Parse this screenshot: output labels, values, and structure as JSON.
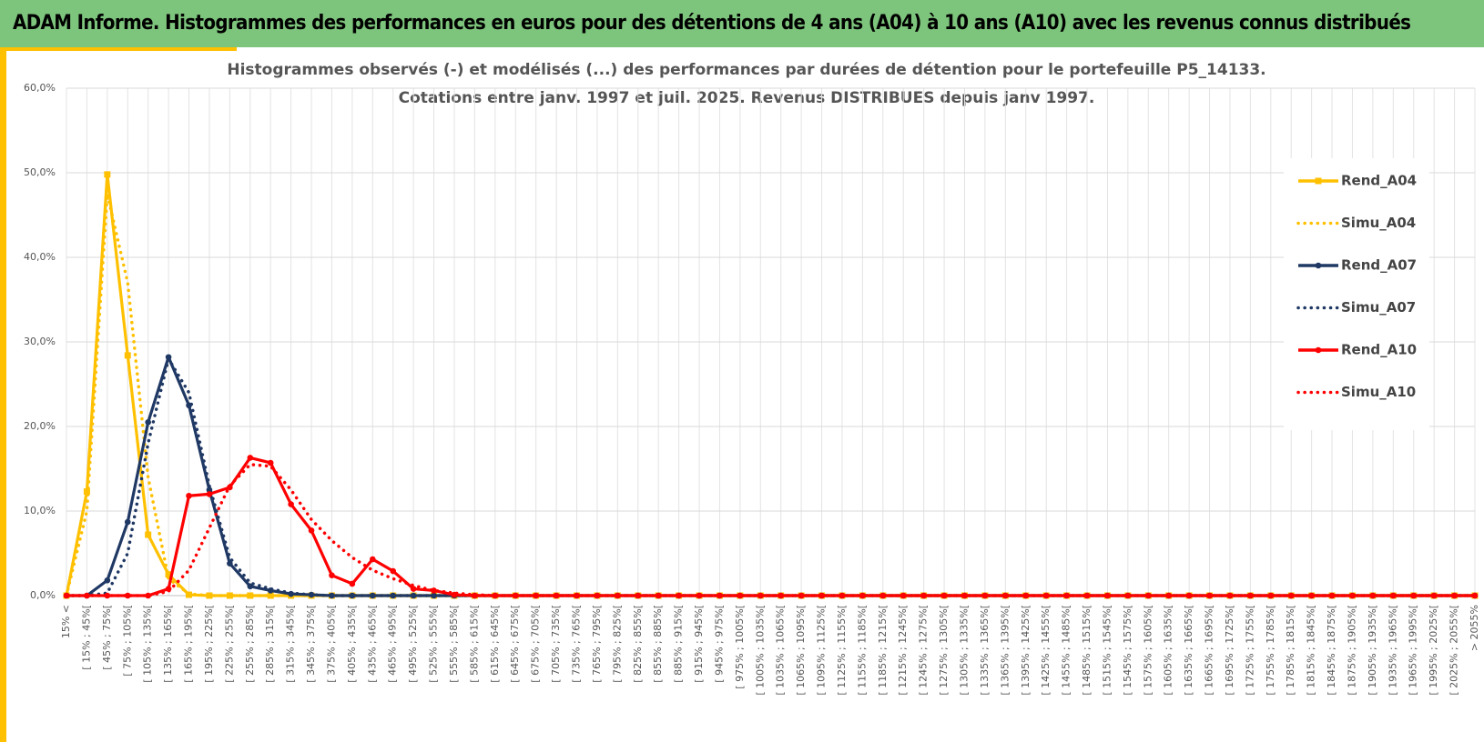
{
  "header": "ADAM Informe. Histogrammes des performances en euros pour des détentions de 4 ans (A04) à 10 ans (A10) avec les revenus connus distribués",
  "chart_data": {
    "type": "line",
    "title": "Histogrammes observés (-) et modélisés (...) des performances par durées de détention pour le portefeuille P5_14133.",
    "subtitle": "Cotations entre janv. 1997 et juil. 2025. Revenus DISTRIBUES depuis janv 1997.",
    "categories": [
      "15% <",
      "[ 15% ; 45%[",
      "[ 45% ; 75%[",
      "[ 75% ; 105%[",
      "[ 105% ; 135%[",
      "[ 135% ; 165%[",
      "[ 165% ; 195%[",
      "[ 195% ; 225%[",
      "[ 225% ; 255%[",
      "[ 255% ; 285%[",
      "[ 285% ; 315%[",
      "[ 315% ; 345%[",
      "[ 345% ; 375%[",
      "[ 375% ; 405%[",
      "[ 405% ; 435%[",
      "[ 435% ; 465%[",
      "[ 465% ; 495%[",
      "[ 495% ; 525%[",
      "[ 525% ; 555%[",
      "[ 555% ; 585%[",
      "[ 585% ; 615%[",
      "[ 615% ; 645%[",
      "[ 645% ; 675%[",
      "[ 675% ; 705%[",
      "[ 705% ; 735%[",
      "[ 735% ; 765%[",
      "[ 765% ; 795%[",
      "[ 795% ; 825%[",
      "[ 825% ; 855%[",
      "[ 855% ; 885%[",
      "[ 885% ; 915%[",
      "[ 915% ; 945%[",
      "[ 945% ; 975%[",
      "[ 975% ; 1005%[",
      "[ 1005% ; 1035%[",
      "[ 1035% ; 1065%[",
      "[ 1065% ; 1095%[",
      "[ 1095% ; 1125%[",
      "[ 1125% ; 1155%[",
      "[ 1155% ; 1185%[",
      "[ 1185% ; 1215%[",
      "[ 1215% ; 1245%[",
      "[ 1245% ; 1275%[",
      "[ 1275% ; 1305%[",
      "[ 1305% ; 1335%[",
      "[ 1335% ; 1365%[",
      "[ 1365% ; 1395%[",
      "[ 1395% ; 1425%[",
      "[ 1425% ; 1455%[",
      "[ 1455% ; 1485%[",
      "[ 1485% ; 1515%[",
      "[ 1515% ; 1545%[",
      "[ 1545% ; 1575%[",
      "[ 1575% ; 1605%[",
      "[ 1605% ; 1635%[",
      "[ 1635% ; 1665%[",
      "[ 1665% ; 1695%[",
      "[ 1695% ; 1725%[",
      "[ 1725% ; 1755%[",
      "[ 1755% ; 1785%[",
      "[ 1785% ; 1815%[",
      "[ 1815% ; 1845%[",
      "[ 1845% ; 1875%[",
      "[ 1875% ; 1905%[",
      "[ 1905% ; 1935%[",
      "[ 1935% ; 1965%[",
      "[ 1965% ; 1995%[",
      "[ 1995% ; 2025%[",
      "[ 2025% ; 2055%[",
      "> 2055%"
    ],
    "series": [
      {
        "name": "Rend_A04",
        "color": "#ffc000",
        "style": "solid",
        "marker": "square",
        "values": [
          0,
          12.3,
          49.8,
          28.4,
          7.2,
          2.5,
          0.1,
          0,
          0,
          0,
          0,
          0,
          0,
          0,
          0,
          0,
          0,
          0,
          0,
          0,
          0,
          0,
          0,
          0,
          0,
          0,
          0,
          0,
          0,
          0,
          0,
          0,
          0,
          0,
          0,
          0,
          0,
          0,
          0,
          0,
          0,
          0,
          0,
          0,
          0,
          0,
          0,
          0,
          0,
          0,
          0,
          0,
          0,
          0,
          0,
          0,
          0,
          0,
          0,
          0,
          0,
          0,
          0,
          0,
          0,
          0,
          0,
          0,
          0,
          0
        ]
      },
      {
        "name": "Simu_A04",
        "color": "#ffc000",
        "style": "dotted",
        "marker": null,
        "values": [
          0,
          10,
          47.5,
          37,
          14,
          2,
          0.2,
          0,
          0,
          0,
          0,
          0,
          0,
          0,
          0,
          0,
          0,
          0,
          0,
          0,
          0,
          0,
          0,
          0,
          0,
          0,
          0,
          0,
          0,
          0,
          0,
          0,
          0,
          0,
          0,
          0,
          0,
          0,
          0,
          0,
          0,
          0,
          0,
          0,
          0,
          0,
          0,
          0,
          0,
          0,
          0,
          0,
          0,
          0,
          0,
          0,
          0,
          0,
          0,
          0,
          0,
          0,
          0,
          0,
          0,
          0,
          0,
          0,
          0,
          0
        ]
      },
      {
        "name": "Rend_A07",
        "color": "#1f3864",
        "style": "solid",
        "marker": "circle",
        "values": [
          0,
          0,
          1.8,
          8.7,
          20.5,
          28.2,
          22.5,
          12.5,
          3.8,
          1.1,
          0.6,
          0.2,
          0.1,
          0,
          0,
          0,
          0,
          0,
          0,
          0,
          0,
          0,
          0,
          0,
          0,
          0,
          0,
          0,
          0,
          0,
          0,
          0,
          0,
          0,
          0,
          0,
          0,
          0,
          0,
          0,
          0,
          0,
          0,
          0,
          0,
          0,
          0,
          0,
          0,
          0,
          0,
          0,
          0,
          0,
          0,
          0,
          0,
          0,
          0,
          0,
          0,
          0,
          0,
          0,
          0,
          0,
          0,
          0,
          0,
          0
        ]
      },
      {
        "name": "Simu_A07",
        "color": "#1f3864",
        "style": "dotted",
        "marker": null,
        "values": [
          0,
          0,
          0.3,
          5,
          18,
          28,
          24,
          13,
          4.5,
          1.5,
          0.8,
          0.3,
          0.1,
          0,
          0,
          0,
          0,
          0,
          0,
          0,
          0,
          0,
          0,
          0,
          0,
          0,
          0,
          0,
          0,
          0,
          0,
          0,
          0,
          0,
          0,
          0,
          0,
          0,
          0,
          0,
          0,
          0,
          0,
          0,
          0,
          0,
          0,
          0,
          0,
          0,
          0,
          0,
          0,
          0,
          0,
          0,
          0,
          0,
          0,
          0,
          0,
          0,
          0,
          0,
          0,
          0,
          0,
          0,
          0,
          0
        ]
      },
      {
        "name": "Rend_A10",
        "color": "#ff0000",
        "style": "solid",
        "marker": "circle",
        "values": [
          0,
          0,
          0,
          0,
          0,
          0.8,
          11.8,
          12,
          12.8,
          16.3,
          15.7,
          10.8,
          7.7,
          2.4,
          1.4,
          4.3,
          2.9,
          0.8,
          0.6,
          0.1,
          0,
          0,
          0,
          0,
          0,
          0,
          0,
          0,
          0,
          0,
          0,
          0,
          0,
          0,
          0,
          0,
          0,
          0,
          0,
          0,
          0,
          0,
          0,
          0,
          0,
          0,
          0,
          0,
          0,
          0,
          0,
          0,
          0,
          0,
          0,
          0,
          0,
          0,
          0,
          0,
          0,
          0,
          0,
          0,
          0,
          0,
          0,
          0,
          0,
          0
        ]
      },
      {
        "name": "Simu_A10",
        "color": "#ff0000",
        "style": "dotted",
        "marker": null,
        "values": [
          0,
          0,
          0,
          0,
          0,
          0.5,
          3,
          8,
          13,
          15.5,
          15.3,
          12.5,
          9,
          6.5,
          4.5,
          3,
          2,
          1.2,
          0.6,
          0.3,
          0.1,
          0,
          0,
          0,
          0,
          0,
          0,
          0,
          0,
          0,
          0,
          0,
          0,
          0,
          0,
          0,
          0,
          0,
          0,
          0,
          0,
          0,
          0,
          0,
          0,
          0,
          0,
          0,
          0,
          0,
          0,
          0,
          0,
          0,
          0,
          0,
          0,
          0,
          0,
          0,
          0,
          0,
          0,
          0,
          0,
          0,
          0,
          0,
          0,
          0
        ]
      }
    ],
    "ylim": [
      0,
      60
    ],
    "yticks": [
      {
        "value": 0,
        "label": "0,0%"
      },
      {
        "value": 10,
        "label": "10,0%"
      },
      {
        "value": 20,
        "label": "20,0%"
      },
      {
        "value": 30,
        "label": "30,0%"
      },
      {
        "value": 40,
        "label": "40,0%"
      },
      {
        "value": 50,
        "label": "50,0%"
      },
      {
        "value": 60,
        "label": "60,0%"
      }
    ],
    "grid": true,
    "legend": "right"
  }
}
